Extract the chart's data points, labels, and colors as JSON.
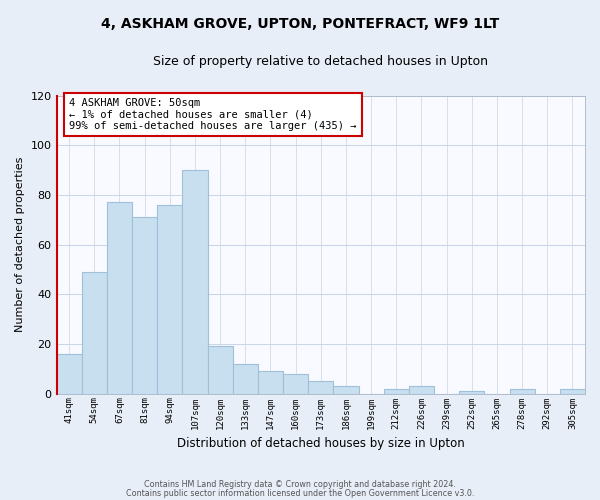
{
  "title": "4, ASKHAM GROVE, UPTON, PONTEFRACT, WF9 1LT",
  "subtitle": "Size of property relative to detached houses in Upton",
  "xlabel": "Distribution of detached houses by size in Upton",
  "ylabel": "Number of detached properties",
  "bar_color": "#c8dff0",
  "bar_edge_color": "#a0c0d8",
  "categories": [
    "41sqm",
    "54sqm",
    "67sqm",
    "81sqm",
    "94sqm",
    "107sqm",
    "120sqm",
    "133sqm",
    "147sqm",
    "160sqm",
    "173sqm",
    "186sqm",
    "199sqm",
    "212sqm",
    "226sqm",
    "239sqm",
    "252sqm",
    "265sqm",
    "278sqm",
    "292sqm",
    "305sqm"
  ],
  "values": [
    16,
    49,
    77,
    71,
    76,
    90,
    19,
    12,
    9,
    8,
    5,
    3,
    0,
    2,
    3,
    0,
    1,
    0,
    2,
    0,
    2
  ],
  "ylim": [
    0,
    120
  ],
  "yticks": [
    0,
    20,
    40,
    60,
    80,
    100,
    120
  ],
  "annotation_line1": "4 ASKHAM GROVE: 50sqm",
  "annotation_line2": "← 1% of detached houses are smaller (4)",
  "annotation_line3": "99% of semi-detached houses are larger (435) →",
  "footer_line1": "Contains HM Land Registry data © Crown copyright and database right 2024.",
  "footer_line2": "Contains public sector information licensed under the Open Government Licence v3.0.",
  "background_color": "#e8eef8",
  "plot_bg_color": "#f8faff",
  "annotation_box_edge": "#cc0000",
  "marker_line_color": "#cc0000",
  "grid_color": "#c8d4e8",
  "title_fontsize": 10,
  "subtitle_fontsize": 9
}
